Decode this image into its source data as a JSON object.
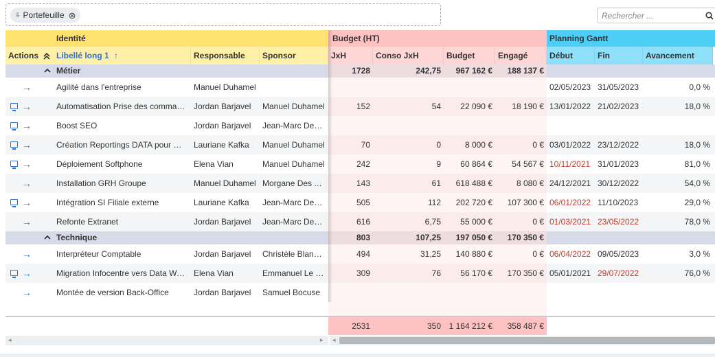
{
  "group_panel": {
    "chip_label": "Portefeuille"
  },
  "search": {
    "placeholder": "Rechercher ..."
  },
  "column_groups": {
    "identity": "Identité",
    "budget": "Budget (HT)",
    "gantt": "Planning Gantt"
  },
  "columns": {
    "actions": "Actions",
    "label": "Libellé long 1",
    "responsible": "Responsable",
    "sponsor": "Sponsor",
    "jxh": "JxH",
    "conso": "Conso JxH",
    "budget": "Budget",
    "engage": "Engagé",
    "start": "Début",
    "end": "Fin",
    "progress": "Avancement"
  },
  "groups": [
    {
      "name": "Métier",
      "jxh": "1728",
      "conso": "242,75",
      "budget": "967 162 €",
      "engage": "188 137 €"
    },
    {
      "name": "Technique",
      "jxh": "803",
      "conso": "107,25",
      "budget": "197 050 €",
      "engage": "170 350 €"
    }
  ],
  "rows": [
    {
      "desktop": false,
      "label": "Agilité dans l'entreprise",
      "responsible": "Manuel Duhamel",
      "sponsor": "",
      "jxh": "",
      "conso": "",
      "budget": "",
      "engage": "",
      "start": "02/05/2023",
      "end": "31/05/2023",
      "progress": "0,0 %",
      "start_red": false,
      "end_red": false
    },
    {
      "desktop": true,
      "label": "Automatisation Prise des commandes",
      "responsible": "Jordan Barjavel",
      "sponsor": "Manuel Duhamel",
      "jxh": "152",
      "conso": "54",
      "budget": "22 090 €",
      "engage": "18 190 €",
      "start": "13/01/2022",
      "end": "21/02/2023",
      "progress": "18,0 %",
      "start_red": false,
      "end_red": false
    },
    {
      "desktop": true,
      "label": "Boost SEO",
      "responsible": "Jordan Barjavel",
      "sponsor": "Jean-Marc Desmarais",
      "jxh": "",
      "conso": "",
      "budget": "",
      "engage": "",
      "start": "",
      "end": "",
      "progress": "",
      "start_red": false,
      "end_red": false
    },
    {
      "desktop": true,
      "label": "Création Reportings DATA pour Marketing",
      "responsible": "Lauriane Kafka",
      "sponsor": "Manuel Duhamel",
      "jxh": "70",
      "conso": "0",
      "budget": "8 000 €",
      "engage": "0 €",
      "start": "03/01/2022",
      "end": "23/12/2022",
      "progress": "18,0 %",
      "start_red": false,
      "end_red": false
    },
    {
      "desktop": true,
      "label": "Déploiement Softphone",
      "responsible": "Elena Vian",
      "sponsor": "Manuel Duhamel",
      "jxh": "242",
      "conso": "9",
      "budget": "60 864 €",
      "engage": "54 567 €",
      "start": "10/11/2021",
      "end": "31/01/2023",
      "progress": "81,0 %",
      "start_red": true,
      "end_red": false
    },
    {
      "desktop": false,
      "label": "Installation GRH Groupe",
      "responsible": "Manuel Duhamel",
      "sponsor": "Morgane Des Aulnes",
      "jxh": "143",
      "conso": "61",
      "budget": "618 488 €",
      "engage": "8 080 €",
      "start": "24/12/2021",
      "end": "30/12/2022",
      "progress": "54,0 %",
      "start_red": false,
      "end_red": false
    },
    {
      "desktop": true,
      "label": "Intégration SI Filiale externe",
      "responsible": "Lauriane Kafka",
      "sponsor": "Jean-Marc Desmarais",
      "jxh": "505",
      "conso": "112",
      "budget": "202 720 €",
      "engage": "107 300 €",
      "start": "06/01/2022",
      "end": "11/10/2023",
      "progress": "29,0 %",
      "start_red": true,
      "end_red": false
    },
    {
      "desktop": false,
      "label": "Refonte Extranet",
      "responsible": "Jordan Barjavel",
      "sponsor": "Jean-Marc Desmarais",
      "jxh": "616",
      "conso": "6,75",
      "budget": "55 000 €",
      "engage": "0 €",
      "start": "01/03/2021",
      "end": "23/05/2022",
      "progress": "78,0 %",
      "start_red": true,
      "end_red": true
    },
    {
      "desktop": false,
      "label": "Interpréteur Comptable",
      "responsible": "Jordan Barjavel",
      "sponsor": "Christèle Blanchard",
      "jxh": "494",
      "conso": "31,25",
      "budget": "140 880 €",
      "engage": "0 €",
      "start": "06/04/2022",
      "end": "09/05/2023",
      "progress": "3,0 %",
      "start_red": true,
      "end_red": false
    },
    {
      "desktop": true,
      "label": "Migration Infocentre vers Data Warehouse",
      "responsible": "Elena Vian",
      "sponsor": "Emmanuel Le Roux",
      "jxh": "309",
      "conso": "76",
      "budget": "56 170 €",
      "engage": "170 350 €",
      "start": "05/01/2021",
      "end": "29/07/2022",
      "progress": "76,0 %",
      "start_red": false,
      "end_red": true
    },
    {
      "desktop": false,
      "label": "Montée de version Back-Office",
      "responsible": "Jordan Barjavel",
      "sponsor": "Samuel Bocuse",
      "jxh": "",
      "conso": "",
      "budget": "",
      "engage": "",
      "start": "",
      "end": "",
      "progress": "",
      "start_red": false,
      "end_red": false
    }
  ],
  "totals": {
    "jxh": "2531",
    "conso": "350",
    "budget": "1 164 212 €",
    "engage": "358 487 €"
  },
  "colors": {
    "identity_header": "#ffe270",
    "identity_subheader": "#fff0a8",
    "budget_header": "#ffc2c2",
    "budget_subheader": "#ffd6d6",
    "gantt_header": "#4dcff5",
    "gantt_subheader": "#8fe1fb",
    "group_row": "#d6dae9",
    "budget_cell": "#fdf0ef",
    "link": "#2f6fd6",
    "late_date": "#c0392b"
  }
}
